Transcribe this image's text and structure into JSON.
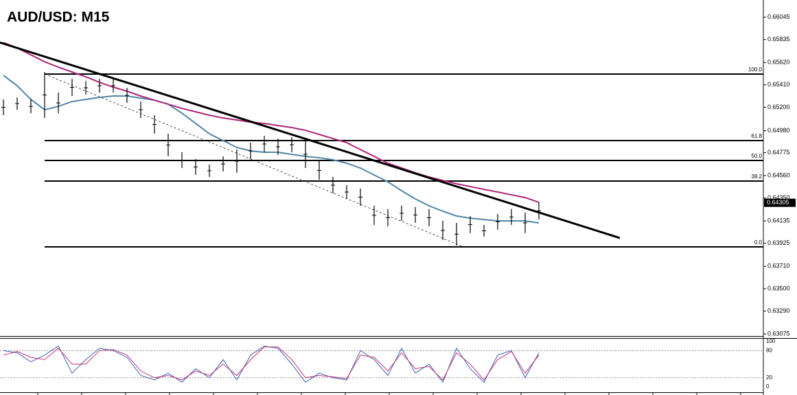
{
  "chart_data": {
    "type": "ohlc",
    "title": "AUD/USD: M15",
    "ylim": [
      0.63056,
      0.66206
    ],
    "yticks": [
      0.66045,
      0.65835,
      {
        "value": 0.6562,
        "label": "0.65620"
      },
      {
        "value": 0.6541,
        "label": "0.65410"
      },
      {
        "value": 0.652,
        "label": "0.65200"
      },
      {
        "value": 0.6498,
        "label": "0.64980"
      },
      0.64775,
      {
        "value": 0.6456,
        "label": "0.64560"
      },
      {
        "value": 0.6435,
        "label": "0.64350"
      },
      0.64135,
      0.63925,
      {
        "value": 0.6371,
        "label": "0.63710"
      },
      {
        "value": 0.635,
        "label": "0.63500"
      },
      {
        "value": 0.6329,
        "label": "0.63290"
      },
      0.63075
    ],
    "last_value": 0.64305,
    "high": [
      0.65274,
      0.65293,
      0.65274,
      0.65531,
      0.65338,
      0.65467,
      0.65447,
      0.65467,
      0.65467,
      0.65383,
      0.65255,
      0.65126,
      0.64953,
      0.64779,
      0.64715,
      0.64663,
      0.6474,
      0.64805,
      0.64869,
      0.64933,
      0.64907,
      0.6492,
      0.64888,
      0.64695,
      0.64548,
      0.6447,
      0.64438,
      0.64278,
      0.64246,
      0.64278,
      0.64265,
      0.64246,
      0.64136,
      0.64117,
      0.64181,
      0.64098,
      0.64201,
      0.64246,
      0.64213,
      0.6431
    ],
    "low": [
      0.65126,
      0.65177,
      0.65145,
      0.651,
      0.65145,
      0.65306,
      0.65319,
      0.65338,
      0.65338,
      0.65242,
      0.651,
      0.64953,
      0.6474,
      0.64631,
      0.64567,
      0.64548,
      0.64599,
      0.64586,
      0.64715,
      0.64779,
      0.64753,
      0.64779,
      0.64631,
      0.64522,
      0.64393,
      0.64342,
      0.64278,
      0.64098,
      0.64085,
      0.64136,
      0.64117,
      0.64085,
      0.63956,
      0.63905,
      0.64021,
      0.63988,
      0.64053,
      0.64098,
      0.64021,
      0.64149
    ],
    "series": [
      {
        "color": "#4f86a8",
        "values": [
          0.65499,
          0.65402,
          0.65274,
          0.65177,
          0.65209,
          0.65254,
          0.65274,
          0.65293,
          0.65306,
          0.65306,
          0.65287,
          0.65267,
          0.65229,
          0.65145,
          0.65049,
          0.64952,
          0.64888,
          0.64824,
          0.64791,
          0.64779,
          0.64779,
          0.64759,
          0.6474,
          0.64727,
          0.64708,
          0.64676,
          0.64631,
          0.64566,
          0.64502,
          0.64418,
          0.64341,
          0.64277,
          0.64226,
          0.64181,
          0.64161,
          0.64148,
          0.64135,
          0.64135,
          0.64135,
          0.64116
        ]
      },
      {
        "color": "#b0247a",
        "values": [
          0.65807,
          0.65756,
          0.65692,
          0.65627,
          0.65576,
          0.65531,
          0.65486,
          0.65434,
          0.65389,
          0.65351,
          0.65306,
          0.65267,
          0.65229,
          0.6519,
          0.65158,
          0.65126,
          0.651,
          0.65081,
          0.65061,
          0.65049,
          0.65029,
          0.6501,
          0.64984,
          0.64946,
          0.64907,
          0.64869,
          0.64804,
          0.6474,
          0.64676,
          0.64631,
          0.64586,
          0.64547,
          0.64515,
          0.64483,
          0.64457,
          0.64431,
          0.64406,
          0.6438,
          0.64354,
          0.64309
        ]
      }
    ],
    "trendline": {
      "x": [
        -0.25,
        44.9
      ],
      "values": [
        0.65807,
        0.63975
      ]
    },
    "fib": {
      "x": 3,
      "levels": [
        {
          "label": "100.0",
          "value": 0.65512
        },
        {
          "label": "61.8",
          "value": 0.64888
        },
        {
          "label": "50.0",
          "value": 0.64702
        },
        {
          "label": "38.2",
          "value": 0.64509
        },
        {
          "label": "0.0",
          "value": 0.63892
        }
      ]
    },
    "oscillator": {
      "ylim": [
        0,
        100
      ],
      "yticks": [
        0,
        20,
        80,
        100
      ],
      "levels": [
        80,
        20
      ],
      "series": [
        {
          "color": "#3a5fb0",
          "values": [
            80,
            75,
            55,
            70,
            90,
            30,
            60,
            85,
            80,
            65,
            25,
            15,
            30,
            10,
            40,
            20,
            60,
            15,
            70,
            90,
            85,
            50,
            10,
            30,
            20,
            15,
            80,
            60,
            25,
            85,
            30,
            50,
            10,
            85,
            40,
            10,
            70,
            80,
            20,
            75
          ]
        },
        {
          "color": "#c0307a",
          "values": [
            70,
            78,
            65,
            60,
            85,
            50,
            50,
            80,
            82,
            70,
            35,
            20,
            25,
            15,
            35,
            25,
            50,
            25,
            60,
            88,
            88,
            60,
            20,
            25,
            22,
            18,
            70,
            65,
            35,
            75,
            40,
            45,
            15,
            75,
            50,
            15,
            60,
            78,
            30,
            70
          ]
        }
      ]
    }
  }
}
